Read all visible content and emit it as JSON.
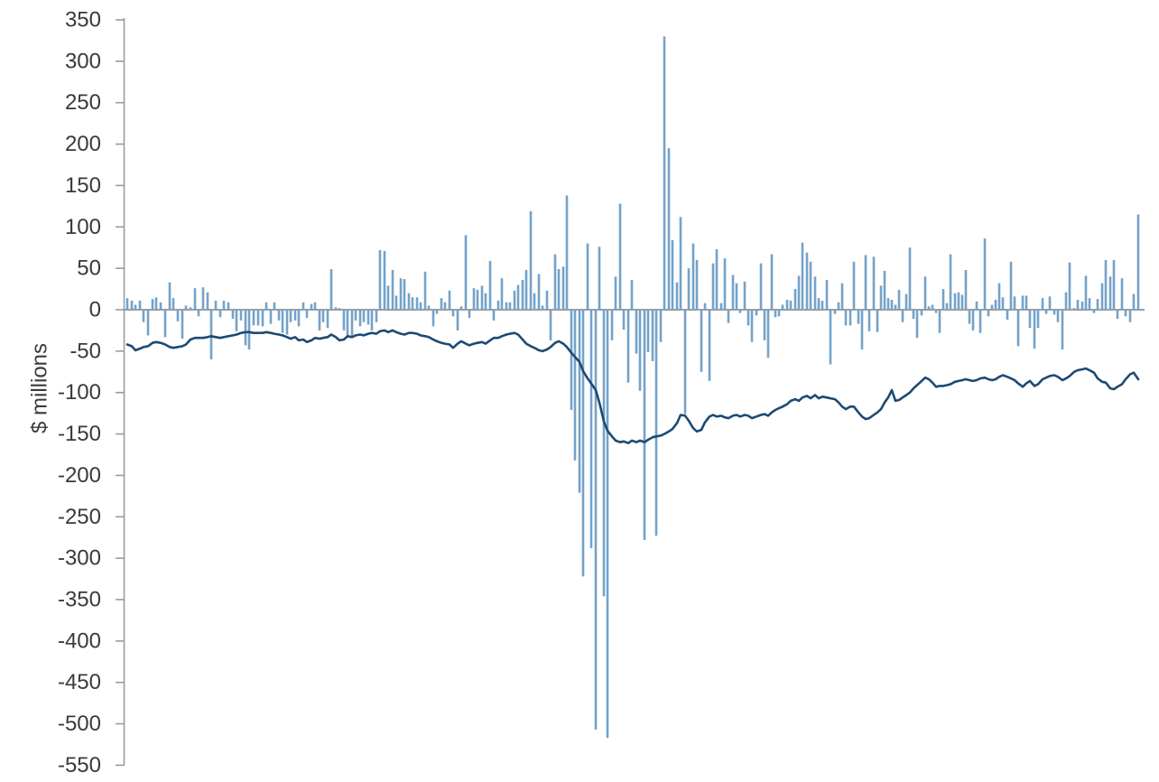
{
  "chart_data": {
    "type": "bar+line",
    "title": "",
    "ylabel": "$ millions",
    "xlabel": "",
    "ylim": [
      -550,
      350
    ],
    "ytick_step": 50,
    "yticks": [
      350,
      300,
      250,
      200,
      150,
      100,
      50,
      0,
      -50,
      -100,
      -150,
      -200,
      -250,
      -300,
      -350,
      -400,
      -450,
      -500,
      -550
    ],
    "grid": "zero-line-only",
    "legend": "none",
    "x_axis_labels": "none",
    "series_meta": [
      {
        "name": "flow-bars",
        "type": "bar",
        "color": "#74a2c9"
      },
      {
        "name": "cumulative-line",
        "type": "line",
        "color": "#1d4a73"
      }
    ],
    "colors": {
      "bar": "#74a2c9",
      "line": "#1d4a73",
      "axis": "#9b9b9b",
      "zero_line": "#7f7f7f",
      "text": "#3a3a3a"
    },
    "points_format": [
      "x_px",
      "bar_value_$M",
      "line_value_$M"
    ],
    "points": [
      [
        141,
        14,
        -42
      ],
      [
        146,
        11,
        -44
      ],
      [
        150,
        6,
        -49
      ],
      [
        155,
        11,
        -47
      ],
      [
        159,
        -15,
        -45
      ],
      [
        164,
        -31,
        -44
      ],
      [
        169,
        13,
        -40
      ],
      [
        173,
        15,
        -39
      ],
      [
        178,
        9,
        -40
      ],
      [
        183,
        -33,
        -42
      ],
      [
        188,
        33,
        -45
      ],
      [
        192,
        14,
        -46
      ],
      [
        197,
        -14,
        -45
      ],
      [
        202,
        -35,
        -44
      ],
      [
        206,
        5,
        -42
      ],
      [
        211,
        3,
        -36
      ],
      [
        216,
        26,
        -34
      ],
      [
        220,
        -8,
        -34
      ],
      [
        225,
        27,
        -34
      ],
      [
        230,
        21,
        -33
      ],
      [
        234,
        -60,
        -32
      ],
      [
        239,
        11,
        -33
      ],
      [
        244,
        -9,
        -34
      ],
      [
        248,
        11,
        -33
      ],
      [
        253,
        9,
        -32
      ],
      [
        258,
        -11,
        -31
      ],
      [
        262,
        -26,
        -30
      ],
      [
        267,
        -13,
        -28
      ],
      [
        272,
        -43,
        -27
      ],
      [
        276,
        -48,
        -27
      ],
      [
        281,
        -19,
        -28
      ],
      [
        286,
        -19,
        -28
      ],
      [
        291,
        -20,
        -28
      ],
      [
        295,
        9,
        -27
      ],
      [
        300,
        -17,
        -28
      ],
      [
        304,
        9,
        -29
      ],
      [
        309,
        -13,
        -30
      ],
      [
        313,
        -28,
        -31
      ],
      [
        318,
        -30,
        -33
      ],
      [
        322,
        -15,
        -35
      ],
      [
        327,
        -13,
        -33
      ],
      [
        331,
        -20,
        -37
      ],
      [
        336,
        9,
        -36
      ],
      [
        340,
        -10,
        -39
      ],
      [
        345,
        7,
        -37
      ],
      [
        349,
        9,
        -34
      ],
      [
        354,
        -25,
        -35
      ],
      [
        358,
        -15,
        -34
      ],
      [
        363,
        -22,
        -33
      ],
      [
        367,
        49,
        -30
      ],
      [
        372,
        3,
        -33
      ],
      [
        376,
        2,
        -37
      ],
      [
        381,
        -25,
        -36
      ],
      [
        385,
        -33,
        -32
      ],
      [
        390,
        -33,
        -33
      ],
      [
        394,
        -13,
        -31
      ],
      [
        399,
        -20,
        -30
      ],
      [
        403,
        -15,
        -31
      ],
      [
        408,
        -18,
        -29
      ],
      [
        412,
        -25,
        -28
      ],
      [
        417,
        -15,
        -29
      ],
      [
        421,
        72,
        -26
      ],
      [
        426,
        71,
        -25
      ],
      [
        430,
        29,
        -27
      ],
      [
        435,
        48,
        -25
      ],
      [
        439,
        17,
        -27
      ],
      [
        444,
        38,
        -29
      ],
      [
        448,
        37,
        -30
      ],
      [
        453,
        20,
        -28
      ],
      [
        457,
        15,
        -28
      ],
      [
        462,
        15,
        -29
      ],
      [
        466,
        9,
        -31
      ],
      [
        471,
        46,
        -32
      ],
      [
        475,
        5,
        -33
      ],
      [
        480,
        -20,
        -36
      ],
      [
        484,
        -5,
        -38
      ],
      [
        489,
        14,
        -40
      ],
      [
        493,
        9,
        -41
      ],
      [
        498,
        23,
        -42
      ],
      [
        502,
        -8,
        -46
      ],
      [
        507,
        -25,
        -41
      ],
      [
        511,
        4,
        -38
      ],
      [
        516,
        90,
        -41
      ],
      [
        520,
        -10,
        -43
      ],
      [
        525,
        26,
        -41
      ],
      [
        529,
        24,
        -40
      ],
      [
        534,
        29,
        -39
      ],
      [
        538,
        20,
        -41
      ],
      [
        543,
        59,
        -37
      ],
      [
        547,
        -13,
        -34
      ],
      [
        552,
        11,
        -34
      ],
      [
        556,
        38,
        -32
      ],
      [
        561,
        9,
        -30
      ],
      [
        565,
        9,
        -29
      ],
      [
        570,
        23,
        -28
      ],
      [
        574,
        30,
        -30
      ],
      [
        579,
        36,
        -36
      ],
      [
        583,
        48,
        -41
      ],
      [
        588,
        119,
        -44
      ],
      [
        592,
        20,
        -46
      ],
      [
        597,
        43,
        -49
      ],
      [
        601,
        5,
        -50
      ],
      [
        606,
        23,
        -48
      ],
      [
        610,
        -37,
        -45
      ],
      [
        615,
        67,
        -40
      ],
      [
        619,
        49,
        -38
      ],
      [
        624,
        52,
        -41
      ],
      [
        628,
        138,
        -45
      ],
      [
        633,
        -121,
        -52
      ],
      [
        637,
        -182,
        -57
      ],
      [
        642,
        -221,
        -63
      ],
      [
        646,
        -322,
        -74
      ],
      [
        651,
        80,
        -83
      ],
      [
        655,
        -288,
        -89
      ],
      [
        660,
        -507,
        -97
      ],
      [
        664,
        76,
        -112
      ],
      [
        669,
        -346,
        -135
      ],
      [
        673,
        -517,
        -146
      ],
      [
        678,
        -37,
        -153
      ],
      [
        682,
        40,
        -158
      ],
      [
        687,
        128,
        -160
      ],
      [
        691,
        -24,
        -159
      ],
      [
        696,
        -88,
        -161
      ],
      [
        700,
        36,
        -158
      ],
      [
        705,
        -53,
        -160
      ],
      [
        709,
        -98,
        -158
      ],
      [
        714,
        -278,
        -160
      ],
      [
        718,
        -51,
        -157
      ],
      [
        723,
        -62,
        -154
      ],
      [
        727,
        -273,
        -153
      ],
      [
        732,
        -39,
        -152
      ],
      [
        736,
        330,
        -150
      ],
      [
        741,
        195,
        -147
      ],
      [
        745,
        84,
        -144
      ],
      [
        750,
        33,
        -137
      ],
      [
        754,
        112,
        -127
      ],
      [
        759,
        -126,
        -128
      ],
      [
        763,
        50,
        -134
      ],
      [
        768,
        80,
        -143
      ],
      [
        772,
        60,
        -147
      ],
      [
        777,
        -75,
        -145
      ],
      [
        781,
        8,
        -136
      ],
      [
        786,
        -86,
        -129
      ],
      [
        790,
        56,
        -127
      ],
      [
        794,
        73,
        -129
      ],
      [
        799,
        8,
        -128
      ],
      [
        803,
        62,
        -130
      ],
      [
        807,
        -16,
        -131
      ],
      [
        812,
        42,
        -128
      ],
      [
        816,
        32,
        -127
      ],
      [
        820,
        -4,
        -129
      ],
      [
        825,
        34,
        -127
      ],
      [
        829,
        -19,
        -128
      ],
      [
        833,
        -39,
        -131
      ],
      [
        838,
        -7,
        -129
      ],
      [
        843,
        56,
        -127
      ],
      [
        847,
        -37,
        -126
      ],
      [
        851,
        -58,
        -128
      ],
      [
        855,
        67,
        -124
      ],
      [
        859,
        -9,
        -121
      ],
      [
        863,
        -8,
        -119
      ],
      [
        867,
        6,
        -117
      ],
      [
        872,
        12,
        -114
      ],
      [
        876,
        11,
        -110
      ],
      [
        881,
        25,
        -108
      ],
      [
        885,
        41,
        -110
      ],
      [
        889,
        81,
        -106
      ],
      [
        894,
        69,
        -104
      ],
      [
        898,
        58,
        -107
      ],
      [
        903,
        40,
        -103
      ],
      [
        907,
        14,
        -107
      ],
      [
        911,
        11,
        -105
      ],
      [
        916,
        36,
        -106
      ],
      [
        920,
        -66,
        -107
      ],
      [
        925,
        -5,
        -108
      ],
      [
        929,
        9,
        -112
      ],
      [
        933,
        32,
        -117
      ],
      [
        937,
        -19,
        -120
      ],
      [
        942,
        -19,
        -117
      ],
      [
        946,
        58,
        -117
      ],
      [
        951,
        -17,
        -124
      ],
      [
        955,
        -48,
        -129
      ],
      [
        959,
        66,
        -132
      ],
      [
        963,
        -26,
        -131
      ],
      [
        968,
        64,
        -127
      ],
      [
        972,
        -27,
        -124
      ],
      [
        976,
        29,
        -120
      ],
      [
        980,
        47,
        -112
      ],
      [
        984,
        14,
        -106
      ],
      [
        988,
        12,
        -97
      ],
      [
        992,
        6,
        -110
      ],
      [
        996,
        24,
        -109
      ],
      [
        1000,
        -15,
        -106
      ],
      [
        1004,
        19,
        -103
      ],
      [
        1008,
        75,
        -100
      ],
      [
        1012,
        -11,
        -95
      ],
      [
        1016,
        -34,
        -91
      ],
      [
        1021,
        -7,
        -86
      ],
      [
        1025,
        40,
        -82
      ],
      [
        1029,
        4,
        -84
      ],
      [
        1033,
        6,
        -88
      ],
      [
        1037,
        -4,
        -93
      ],
      [
        1041,
        -28,
        -92
      ],
      [
        1045,
        25,
        -92
      ],
      [
        1049,
        8,
        -91
      ],
      [
        1053,
        67,
        -90
      ],
      [
        1058,
        20,
        -87
      ],
      [
        1062,
        21,
        -86
      ],
      [
        1066,
        18,
        -85
      ],
      [
        1070,
        48,
        -84
      ],
      [
        1074,
        -17,
        -85
      ],
      [
        1078,
        -25,
        -86
      ],
      [
        1082,
        10,
        -85
      ],
      [
        1086,
        -28,
        -83
      ],
      [
        1091,
        86,
        -82
      ],
      [
        1095,
        -8,
        -84
      ],
      [
        1099,
        6,
        -85
      ],
      [
        1103,
        12,
        -84
      ],
      [
        1107,
        32,
        -81
      ],
      [
        1111,
        15,
        -79
      ],
      [
        1116,
        -12,
        -81
      ],
      [
        1120,
        58,
        -83
      ],
      [
        1124,
        16,
        -85
      ],
      [
        1128,
        -44,
        -89
      ],
      [
        1133,
        17,
        -93
      ],
      [
        1137,
        17,
        -89
      ],
      [
        1141,
        -22,
        -86
      ],
      [
        1146,
        -47,
        -92
      ],
      [
        1150,
        -22,
        -90
      ],
      [
        1155,
        14,
        -84
      ],
      [
        1159,
        -5,
        -82
      ],
      [
        1163,
        16,
        -80
      ],
      [
        1168,
        -6,
        -79
      ],
      [
        1172,
        -15,
        -81
      ],
      [
        1177,
        -48,
        -85
      ],
      [
        1181,
        21,
        -83
      ],
      [
        1185,
        57,
        -80
      ],
      [
        1190,
        2,
        -75
      ],
      [
        1194,
        12,
        -73
      ],
      [
        1199,
        10,
        -72
      ],
      [
        1203,
        41,
        -71
      ],
      [
        1207,
        14,
        -73
      ],
      [
        1212,
        -4,
        -76
      ],
      [
        1216,
        13,
        -83
      ],
      [
        1221,
        32,
        -87
      ],
      [
        1225,
        60,
        -88
      ],
      [
        1230,
        40,
        -95
      ],
      [
        1234,
        60,
        -96
      ],
      [
        1238,
        -11,
        -93
      ],
      [
        1243,
        38,
        -90
      ],
      [
        1247,
        -8,
        -84
      ],
      [
        1252,
        -15,
        -78
      ],
      [
        1256,
        19,
        -76
      ],
      [
        1261,
        115,
        -84
      ]
    ]
  }
}
